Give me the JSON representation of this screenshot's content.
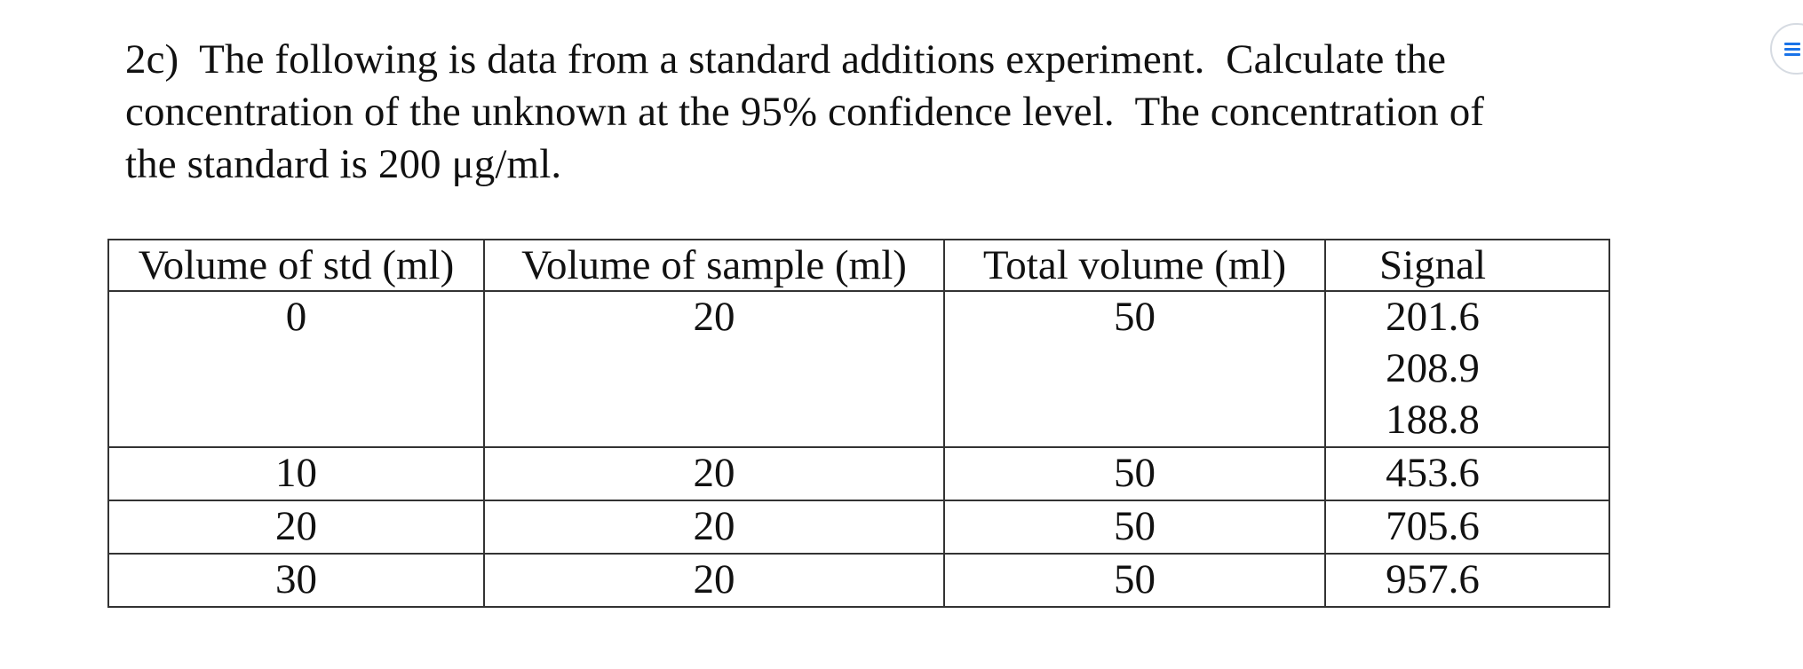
{
  "problem": {
    "lines": [
      "2c)  The following is data from a standard additions experiment.  Calculate the",
      "concentration of the unknown at the 95% confidence level.  The concentration of",
      "the standard is 200 μg/ml."
    ]
  },
  "table": {
    "headers": [
      "Volume of std (ml)",
      "Volume of sample (ml)",
      "Total volume (ml)",
      "Signal"
    ],
    "rows": [
      {
        "std": "0",
        "sample": "20",
        "total": "50",
        "signals": [
          "201.6",
          "208.9",
          "188.8"
        ]
      },
      {
        "std": "10",
        "sample": "20",
        "total": "50",
        "signals": [
          "453.6"
        ]
      },
      {
        "std": "20",
        "sample": "20",
        "total": "50",
        "signals": [
          "705.6"
        ]
      },
      {
        "std": "30",
        "sample": "20",
        "total": "50",
        "signals": [
          "957.6"
        ]
      }
    ]
  },
  "side_widget": {
    "icon": "menu-icon",
    "accent_color": "#1a73e8"
  }
}
